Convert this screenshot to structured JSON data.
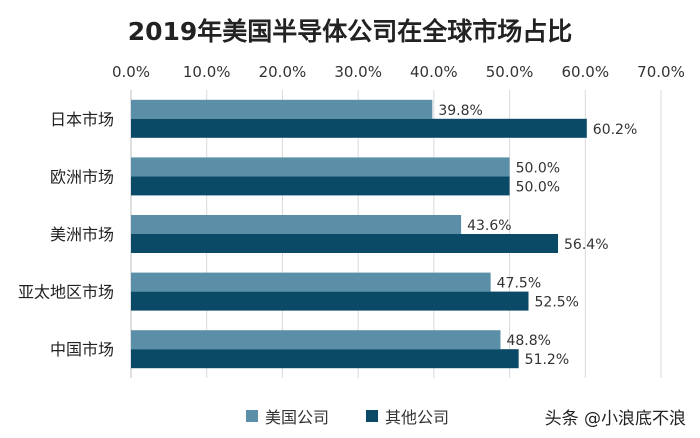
{
  "chart_data": {
    "type": "bar",
    "orientation": "horizontal",
    "title": "2019年美国半导体公司在全球市场占比",
    "categories": [
      "日本市场",
      "欧洲市场",
      "美洲市场",
      "亚太地区市场",
      "中国市场"
    ],
    "series": [
      {
        "name": "美国公司",
        "values": [
          39.8,
          50.0,
          43.6,
          47.5,
          48.8
        ],
        "labels": [
          "39.8%",
          "50.0%",
          "43.6%",
          "47.5%",
          "48.8%"
        ],
        "color": "#5B8FA8"
      },
      {
        "name": "其他公司",
        "values": [
          60.2,
          50.0,
          56.4,
          52.5,
          51.2
        ],
        "labels": [
          "60.2%",
          "50.0%",
          "56.4%",
          "52.5%",
          "51.2%"
        ],
        "color": "#0B4A66"
      }
    ],
    "xlim": [
      0,
      70
    ],
    "xticks": [
      "0.0%",
      "10.0%",
      "20.0%",
      "30.0%",
      "40.0%",
      "50.0%",
      "60.0%",
      "70.0%"
    ],
    "x_axis_position": "top",
    "grid": true,
    "legend_position": "bottom"
  },
  "watermark": "头条 @小浪底不浪"
}
